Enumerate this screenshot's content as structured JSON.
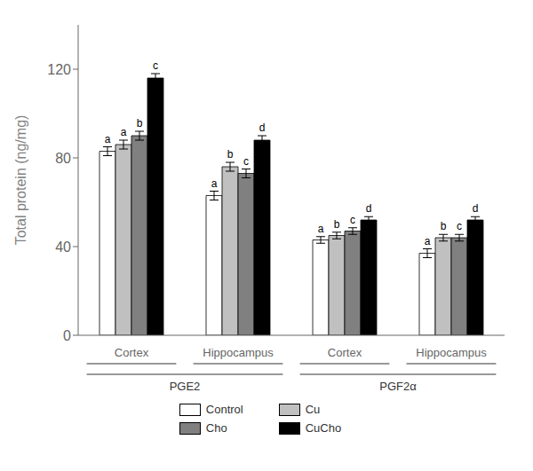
{
  "chart_data": {
    "type": "bar",
    "ylabel": "Total protein (ng/mg)",
    "categories": [
      "Cortex",
      "Hippocampus",
      "Cortex",
      "Hippocampus"
    ],
    "parent_categories": [
      "PGE2",
      "PGE2",
      "PGF2α",
      "PGF2α"
    ],
    "series": [
      {
        "name": "Control",
        "color": "#ffffff",
        "values": [
          83,
          63,
          43,
          37
        ],
        "errors": [
          2.0,
          2.0,
          1.5,
          2.0
        ],
        "stat_labels": [
          "a",
          "a",
          "a",
          "a"
        ]
      },
      {
        "name": "Cu",
        "color": "#c0c0c0",
        "values": [
          86,
          76,
          45,
          44
        ],
        "errors": [
          2.0,
          2.0,
          1.5,
          1.5
        ],
        "stat_labels": [
          "a",
          "b",
          "b",
          "b"
        ]
      },
      {
        "name": "Cho",
        "color": "#808080",
        "values": [
          90,
          73,
          47,
          44
        ],
        "errors": [
          2.0,
          2.0,
          1.5,
          1.5
        ],
        "stat_labels": [
          "b",
          "c",
          "c",
          "c"
        ]
      },
      {
        "name": "CuCho",
        "color": "#000000",
        "values": [
          116,
          88,
          52,
          52
        ],
        "errors": [
          2.0,
          2.0,
          1.5,
          1.5
        ],
        "stat_labels": [
          "c",
          "d",
          "d",
          "d"
        ]
      }
    ],
    "ylim": [
      0,
      140
    ],
    "yticks": [
      0,
      40,
      80,
      120
    ],
    "grid": false,
    "legend": "bottom"
  }
}
